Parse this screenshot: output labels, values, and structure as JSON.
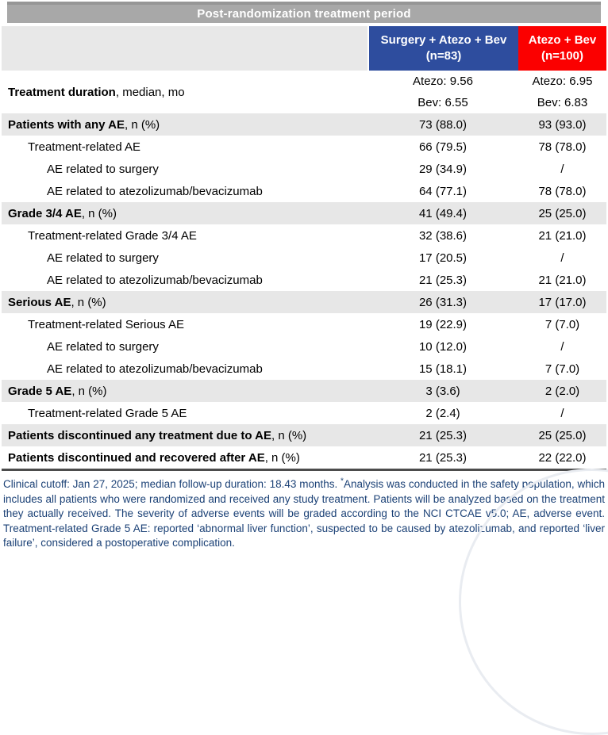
{
  "table": {
    "title": "Post-randomization treatment period",
    "columns": [
      {
        "name": "Surgery + Atezo + Bev",
        "n": "(n=83)",
        "color": "#2e4d9e"
      },
      {
        "name": "Atezo + Bev",
        "n": "(n=100)",
        "color": "#fb0000"
      }
    ],
    "rows": [
      {
        "label_bold": "Treatment duration",
        "label_rest": ", median, mo",
        "indent": 0,
        "shaded": false,
        "values": [
          [
            "Atezo: 9.56",
            "Bev: 6.55"
          ],
          [
            "Atezo: 6.95",
            "Bev: 6.83"
          ]
        ]
      },
      {
        "label_bold": "Patients with any AE",
        "label_rest": ", n (%)",
        "indent": 0,
        "shaded": true,
        "values": [
          [
            "73 (88.0)"
          ],
          [
            "93 (93.0)"
          ]
        ]
      },
      {
        "label_bold": "",
        "label_rest": "Treatment-related AE",
        "indent": 1,
        "shaded": false,
        "values": [
          [
            "66 (79.5)"
          ],
          [
            "78 (78.0)"
          ]
        ]
      },
      {
        "label_bold": "",
        "label_rest": "AE related to surgery",
        "indent": 2,
        "shaded": false,
        "values": [
          [
            "29 (34.9)"
          ],
          [
            "/"
          ]
        ]
      },
      {
        "label_bold": "",
        "label_rest": "AE related to atezolizumab/bevacizumab",
        "indent": 2,
        "shaded": false,
        "values": [
          [
            "64 (77.1)"
          ],
          [
            "78 (78.0)"
          ]
        ]
      },
      {
        "label_bold": "Grade 3/4 AE",
        "label_rest": ", n (%)",
        "indent": 0,
        "shaded": true,
        "values": [
          [
            "41 (49.4)"
          ],
          [
            "25 (25.0)"
          ]
        ]
      },
      {
        "label_bold": "",
        "label_rest": "Treatment-related Grade 3/4 AE",
        "indent": 1,
        "shaded": false,
        "values": [
          [
            "32 (38.6)"
          ],
          [
            "21 (21.0)"
          ]
        ]
      },
      {
        "label_bold": "",
        "label_rest": "AE related to surgery",
        "indent": 2,
        "shaded": false,
        "values": [
          [
            "17 (20.5)"
          ],
          [
            "/"
          ]
        ]
      },
      {
        "label_bold": "",
        "label_rest": "AE related to atezolizumab/bevacizumab",
        "indent": 2,
        "shaded": false,
        "values": [
          [
            "21 (25.3)"
          ],
          [
            "21 (21.0)"
          ]
        ]
      },
      {
        "label_bold": "Serious AE",
        "label_rest": ", n (%)",
        "indent": 0,
        "shaded": true,
        "values": [
          [
            "26 (31.3)"
          ],
          [
            "17 (17.0)"
          ]
        ]
      },
      {
        "label_bold": "",
        "label_rest": "Treatment-related Serious AE",
        "indent": 1,
        "shaded": false,
        "values": [
          [
            "19 (22.9)"
          ],
          [
            "7 (7.0)"
          ]
        ]
      },
      {
        "label_bold": "",
        "label_rest": "AE related to surgery",
        "indent": 2,
        "shaded": false,
        "values": [
          [
            "10 (12.0)"
          ],
          [
            "/"
          ]
        ]
      },
      {
        "label_bold": "",
        "label_rest": "AE related to atezolizumab/bevacizumab",
        "indent": 2,
        "shaded": false,
        "values": [
          [
            "15 (18.1)"
          ],
          [
            "7 (7.0)"
          ]
        ]
      },
      {
        "label_bold": "Grade 5 AE",
        "label_rest": ", n (%)",
        "indent": 0,
        "shaded": true,
        "values": [
          [
            "3 (3.6)"
          ],
          [
            "2 (2.0)"
          ]
        ]
      },
      {
        "label_bold": "",
        "label_rest": "Treatment-related Grade 5 AE",
        "indent": 1,
        "shaded": false,
        "values": [
          [
            "2 (2.4)"
          ],
          [
            "/"
          ]
        ]
      },
      {
        "label_bold": "Patients discontinued any treatment due to AE",
        "label_rest": ", n (%)",
        "indent": 0,
        "shaded": true,
        "values": [
          [
            "21 (25.3)"
          ],
          [
            "25 (25.0)"
          ]
        ]
      },
      {
        "label_bold": "Patients discontinued and recovered after AE",
        "label_rest": ", n (%)",
        "indent": 0,
        "shaded": false,
        "values": [
          [
            "21 (25.3)"
          ],
          [
            "22 (22.0)"
          ]
        ]
      }
    ]
  },
  "footnote": {
    "text_before_sup": "Clinical cutoff: Jan 27, 2025; median follow-up duration: 18.43 months. ",
    "sup": "*",
    "text_after_sup": "Analysis was conducted in the safety population, which includes all patients who were randomized and received any study treatment. Patients will be analyzed based on the treatment they actually received. The severity of adverse events will be graded according to the NCI CTCAE v5.0; AE, adverse event. Treatment-related Grade 5 AE: reported ‘abnormal liver function’, suspected to be caused by atezolizumab, and reported ‘liver failure’, considered a postoperative complication."
  },
  "colors": {
    "title_bar": "#a8a8a8",
    "shaded_row": "#e7e7e7",
    "header_empty_cell": "#e8e8e8",
    "surgery_column_blue": "#2e4d9e",
    "atezo_bev_column_red": "#fb0000",
    "footnote_navy": "#1b4176"
  }
}
